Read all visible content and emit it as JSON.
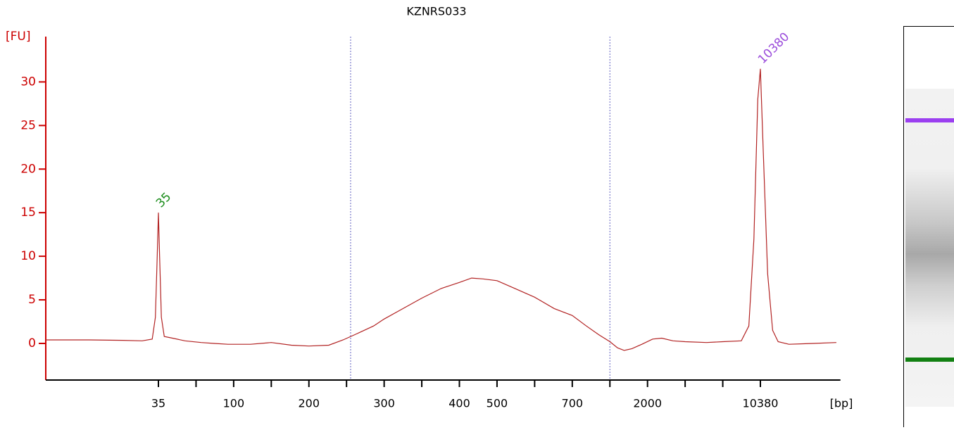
{
  "chart_data": {
    "type": "line",
    "title": "KZNRS033",
    "ylabel": "[FU]",
    "xlabel": "[bp]",
    "ylim": [
      -4.2,
      35.2
    ],
    "yticks": [
      0,
      5,
      10,
      15,
      20,
      25,
      30
    ],
    "xscale": "ladder",
    "xlim": [
      12,
      24000
    ],
    "xticks": [
      35,
      100,
      200,
      300,
      400,
      500,
      700,
      2000,
      10380
    ],
    "xminor_ticks": [
      50,
      150,
      250,
      350,
      600,
      1000,
      4000,
      7000
    ],
    "axis_color": "#cc0000",
    "region": [
      255,
      1000
    ],
    "region_color": "#6060c0",
    "series": [
      {
        "name": "KZNRS033",
        "color": "#b22222",
        "x": [
          12,
          18,
          25,
          30,
          33,
          34,
          34.6,
          35,
          35.4,
          36,
          37,
          40,
          45,
          55,
          70,
          90,
          120,
          150,
          175,
          200,
          225,
          245,
          265,
          285,
          300,
          320,
          350,
          375,
          400,
          430,
          460,
          500,
          540,
          600,
          650,
          700,
          800,
          900,
          1000,
          1150,
          1300,
          1500,
          1800,
          2200,
          2600,
          3200,
          4000,
          5500,
          7000,
          8500,
          9200,
          9700,
          10100,
          10380,
          10700,
          11200,
          11800,
          12500,
          14000,
          18000,
          23000
        ],
        "values": [
          0.4,
          0.4,
          0.35,
          0.3,
          0.5,
          3,
          10,
          15,
          10,
          3,
          0.8,
          0.6,
          0.3,
          0.1,
          0.0,
          -0.1,
          -0.1,
          0.1,
          -0.2,
          -0.3,
          -0.2,
          0.4,
          1.2,
          2.0,
          2.8,
          3.8,
          5.2,
          6.3,
          7.0,
          7.5,
          7.4,
          7.2,
          6.4,
          5.3,
          4.0,
          3.2,
          2.0,
          1.0,
          0.2,
          -0.5,
          -0.8,
          -0.6,
          -0.1,
          0.5,
          0.6,
          0.3,
          0.2,
          0.1,
          0.2,
          0.3,
          2,
          12,
          28,
          31.5,
          22,
          8,
          1.5,
          0.2,
          -0.1,
          0,
          0.1
        ]
      }
    ],
    "annotations": [
      {
        "text": "35",
        "x": 35,
        "y": 15,
        "color": "#1a8c1a"
      },
      {
        "text": "10380",
        "x": 10380,
        "y": 31.5,
        "color": "#9b4ddb"
      }
    ]
  }
}
